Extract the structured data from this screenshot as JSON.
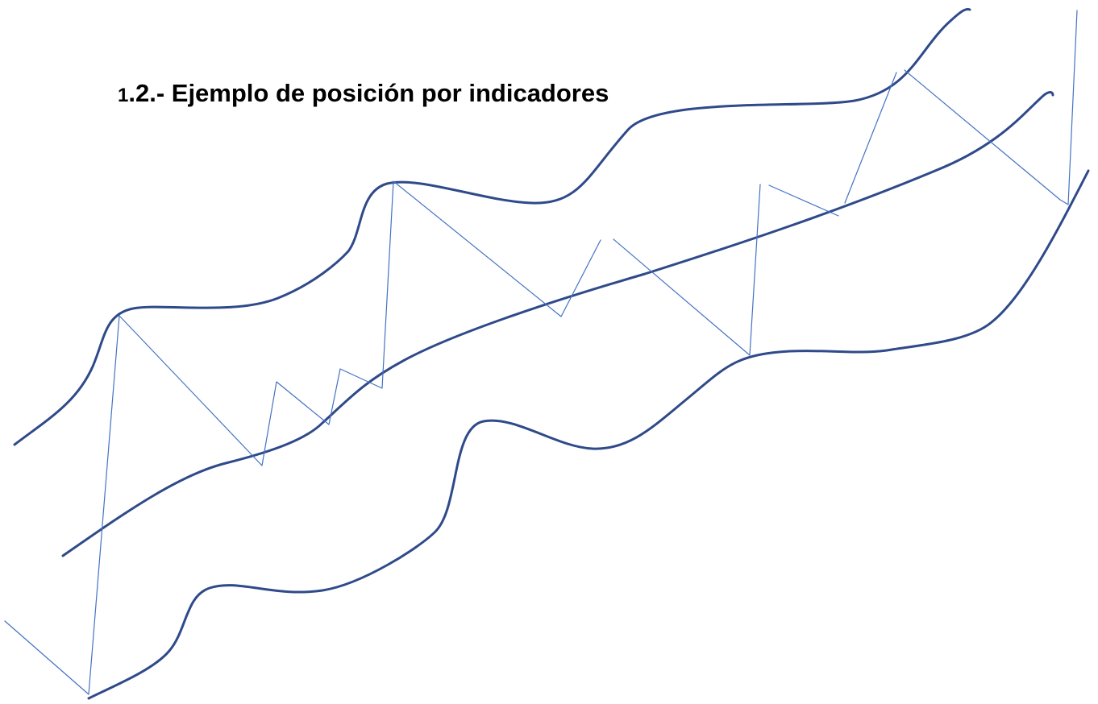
{
  "document": {
    "title_number": "1",
    "title_text": ".2.- Ejemplo de posición por indicadores"
  },
  "colors": {
    "band_stroke": "#2f4a8a",
    "price_stroke": "#4472c4",
    "background": "#ffffff"
  }
}
